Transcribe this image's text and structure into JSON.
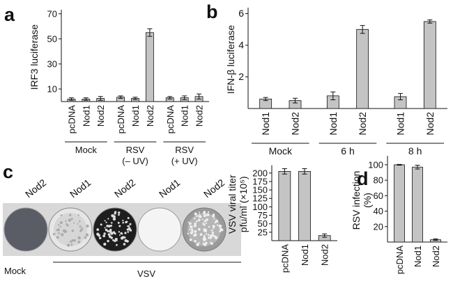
{
  "chart_data": [
    {
      "type": "bar",
      "ylabel": [
        "IRF3 luciferase"
      ],
      "categories": [
        "pcDNA",
        "Nod1",
        "Nod2",
        "pcDNA",
        "Nod1",
        "Nod2",
        "pcDNA",
        "Nod1",
        "Nod2"
      ],
      "groups": [
        {
          "lines": [
            "Mock"
          ],
          "size": 3
        },
        {
          "lines": [
            "RSV",
            "(– UV)"
          ],
          "size": 3
        },
        {
          "lines": [
            "RSV",
            "(+ UV)"
          ],
          "size": 3
        }
      ],
      "values": [
        2,
        2,
        2.5,
        3.5,
        2.5,
        55,
        3,
        3,
        4
      ],
      "errors": [
        1,
        1,
        1.5,
        1,
        1,
        3,
        1,
        1.5,
        2
      ],
      "color": "#c4c4c4",
      "ylim": [
        0,
        71
      ],
      "yticks": [
        10,
        30,
        50,
        70
      ]
    },
    {
      "type": "bar",
      "ylabel": [
        "IFN-β luciferase"
      ],
      "categories": [
        "Nod1",
        "Nod2",
        "Nod1",
        "Nod2",
        "Nod1",
        "Nod2"
      ],
      "groups": [
        {
          "lines": [
            "Mock"
          ],
          "size": 2
        },
        {
          "lines": [
            "6 h"
          ],
          "size": 2
        },
        {
          "lines": [
            "8 h"
          ],
          "size": 2
        }
      ],
      "values": [
        0.6,
        0.5,
        0.8,
        5.0,
        0.75,
        5.5
      ],
      "errors": [
        0.1,
        0.15,
        0.25,
        0.25,
        0.2,
        0.1
      ],
      "color": "#c4c4c4",
      "ylim": [
        0,
        6.2
      ],
      "yticks": [
        2,
        4,
        6
      ]
    },
    {
      "type": "bar",
      "ylabel": [
        "VSV viral titer",
        "pfu/ml (×10⁵)"
      ],
      "categories": [
        "pcDNA",
        "Nod1",
        "Nod2"
      ],
      "values": [
        205,
        205,
        15
      ],
      "errors": [
        8,
        8,
        5
      ],
      "color": "#c4c4c4",
      "ylim": [
        0,
        215
      ],
      "yticks": [
        25,
        50,
        75,
        100,
        125,
        150,
        175,
        200
      ]
    },
    {
      "type": "bar",
      "ylabel": [
        "RSV infection",
        "(%)"
      ],
      "categories": [
        "pcDNA",
        "Nod1",
        "Nod2"
      ],
      "values": [
        100,
        97,
        3
      ],
      "errors": [
        0.5,
        2.5,
        1
      ],
      "color": "#c4c4c4",
      "ylim": [
        0,
        108
      ],
      "yticks": [
        20,
        40,
        60,
        80,
        100
      ]
    }
  ],
  "panel_labels": [
    "a",
    "b",
    "c",
    "d"
  ],
  "plates": {
    "labels": [
      "Nod2",
      "Nod1",
      "Nod2",
      "Nod1",
      "Nod2"
    ],
    "mock": "Mock",
    "treatment": "VSV"
  }
}
